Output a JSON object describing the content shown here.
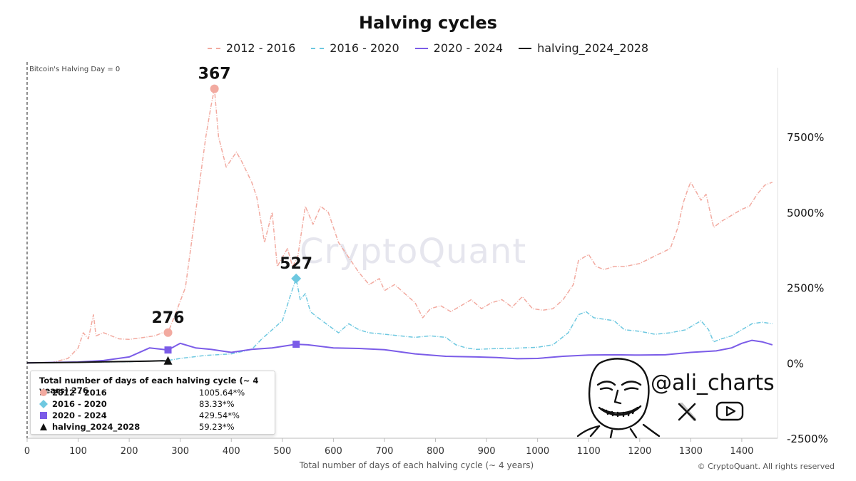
{
  "chart_data": {
    "type": "line",
    "title": "Halving cycles",
    "xlabel": "Total number of days of each halving cycle (~ 4 years)",
    "ylabel": "",
    "xlim": [
      0,
      1470
    ],
    "ylim": [
      -2500,
      9800
    ],
    "x_ticks": [
      0,
      100,
      200,
      300,
      400,
      500,
      600,
      700,
      800,
      900,
      1000,
      1100,
      1200,
      1300,
      1400
    ],
    "y_ticks": [
      -2500,
      0,
      2500,
      5000,
      7500
    ],
    "y_tick_labels": [
      "-2500%",
      "0%",
      "2500%",
      "5000%",
      "7500%"
    ],
    "legend_position": "top-center",
    "grid": false,
    "vertical_line_label": "Bitcoin's Halving Day = 0",
    "series": [
      {
        "name": "2012 - 2016",
        "color": "#f2aaa0",
        "dash": "dash-dot",
        "points": [
          [
            0,
            0
          ],
          [
            50,
            20
          ],
          [
            80,
            150
          ],
          [
            100,
            500
          ],
          [
            110,
            1000
          ],
          [
            120,
            800
          ],
          [
            130,
            1600
          ],
          [
            135,
            900
          ],
          [
            150,
            1000
          ],
          [
            180,
            800
          ],
          [
            200,
            780
          ],
          [
            230,
            850
          ],
          [
            250,
            900
          ],
          [
            265,
            1000
          ],
          [
            276,
            1005.64
          ],
          [
            290,
            1600
          ],
          [
            310,
            2500
          ],
          [
            330,
            5000
          ],
          [
            350,
            7500
          ],
          [
            360,
            8500
          ],
          [
            367,
            9100
          ],
          [
            375,
            7500
          ],
          [
            390,
            6500
          ],
          [
            410,
            7000
          ],
          [
            420,
            6700
          ],
          [
            440,
            6000
          ],
          [
            450,
            5500
          ],
          [
            465,
            4000
          ],
          [
            480,
            5000
          ],
          [
            490,
            3200
          ],
          [
            500,
            3500
          ],
          [
            510,
            3800
          ],
          [
            520,
            3200
          ],
          [
            530,
            3500
          ],
          [
            545,
            5200
          ],
          [
            560,
            4600
          ],
          [
            575,
            5200
          ],
          [
            590,
            5000
          ],
          [
            610,
            4000
          ],
          [
            630,
            3500
          ],
          [
            650,
            3000
          ],
          [
            670,
            2600
          ],
          [
            690,
            2800
          ],
          [
            700,
            2400
          ],
          [
            720,
            2600
          ],
          [
            740,
            2300
          ],
          [
            760,
            2000
          ],
          [
            775,
            1500
          ],
          [
            790,
            1800
          ],
          [
            810,
            1900
          ],
          [
            830,
            1700
          ],
          [
            850,
            1900
          ],
          [
            870,
            2100
          ],
          [
            890,
            1800
          ],
          [
            910,
            2000
          ],
          [
            930,
            2100
          ],
          [
            950,
            1850
          ],
          [
            970,
            2200
          ],
          [
            990,
            1800
          ],
          [
            1010,
            1750
          ],
          [
            1030,
            1800
          ],
          [
            1050,
            2100
          ],
          [
            1070,
            2600
          ],
          [
            1080,
            3400
          ],
          [
            1100,
            3600
          ],
          [
            1115,
            3200
          ],
          [
            1130,
            3100
          ],
          [
            1150,
            3200
          ],
          [
            1170,
            3200
          ],
          [
            1200,
            3300
          ],
          [
            1230,
            3550
          ],
          [
            1260,
            3800
          ],
          [
            1275,
            4500
          ],
          [
            1285,
            5300
          ],
          [
            1295,
            5800
          ],
          [
            1300,
            6000
          ],
          [
            1310,
            5700
          ],
          [
            1320,
            5400
          ],
          [
            1330,
            5600
          ],
          [
            1345,
            4500
          ],
          [
            1360,
            4700
          ],
          [
            1380,
            4900
          ],
          [
            1400,
            5100
          ],
          [
            1415,
            5200
          ],
          [
            1430,
            5600
          ],
          [
            1445,
            5900
          ],
          [
            1460,
            6000
          ]
        ]
      },
      {
        "name": "2016 - 2020",
        "color": "#6ec8e0",
        "dash": "dash-dot",
        "points": [
          [
            0,
            0
          ],
          [
            100,
            20
          ],
          [
            200,
            40
          ],
          [
            276,
            83.33
          ],
          [
            300,
            150
          ],
          [
            350,
            250
          ],
          [
            400,
            300
          ],
          [
            440,
            450
          ],
          [
            460,
            800
          ],
          [
            480,
            1100
          ],
          [
            500,
            1400
          ],
          [
            515,
            2200
          ],
          [
            527,
            2800
          ],
          [
            535,
            2100
          ],
          [
            545,
            2300
          ],
          [
            555,
            1700
          ],
          [
            570,
            1500
          ],
          [
            590,
            1250
          ],
          [
            610,
            1000
          ],
          [
            630,
            1300
          ],
          [
            650,
            1100
          ],
          [
            670,
            1000
          ],
          [
            700,
            950
          ],
          [
            730,
            900
          ],
          [
            760,
            850
          ],
          [
            790,
            900
          ],
          [
            820,
            850
          ],
          [
            840,
            600
          ],
          [
            860,
            500
          ],
          [
            880,
            450
          ],
          [
            910,
            470
          ],
          [
            940,
            480
          ],
          [
            970,
            500
          ],
          [
            1000,
            520
          ],
          [
            1030,
            600
          ],
          [
            1060,
            1000
          ],
          [
            1080,
            1600
          ],
          [
            1095,
            1700
          ],
          [
            1110,
            1500
          ],
          [
            1130,
            1450
          ],
          [
            1150,
            1400
          ],
          [
            1170,
            1100
          ],
          [
            1200,
            1050
          ],
          [
            1230,
            950
          ],
          [
            1260,
            1000
          ],
          [
            1290,
            1100
          ],
          [
            1320,
            1400
          ],
          [
            1335,
            1100
          ],
          [
            1345,
            700
          ],
          [
            1360,
            800
          ],
          [
            1380,
            900
          ],
          [
            1400,
            1100
          ],
          [
            1420,
            1300
          ],
          [
            1440,
            1350
          ],
          [
            1460,
            1300
          ]
        ]
      },
      {
        "name": "2020 - 2024",
        "color": "#7b5ce8",
        "dash": "solid",
        "points": [
          [
            0,
            0
          ],
          [
            100,
            30
          ],
          [
            150,
            80
          ],
          [
            200,
            200
          ],
          [
            240,
            500
          ],
          [
            276,
            429.54
          ],
          [
            300,
            650
          ],
          [
            330,
            500
          ],
          [
            360,
            450
          ],
          [
            400,
            350
          ],
          [
            440,
            450
          ],
          [
            480,
            500
          ],
          [
            527,
            620
          ],
          [
            550,
            600
          ],
          [
            600,
            500
          ],
          [
            650,
            480
          ],
          [
            700,
            440
          ],
          [
            760,
            300
          ],
          [
            820,
            220
          ],
          [
            880,
            200
          ],
          [
            920,
            180
          ],
          [
            960,
            140
          ],
          [
            1000,
            150
          ],
          [
            1050,
            220
          ],
          [
            1100,
            260
          ],
          [
            1150,
            270
          ],
          [
            1200,
            260
          ],
          [
            1250,
            270
          ],
          [
            1300,
            350
          ],
          [
            1350,
            400
          ],
          [
            1380,
            500
          ],
          [
            1400,
            650
          ],
          [
            1420,
            750
          ],
          [
            1440,
            700
          ],
          [
            1460,
            600
          ]
        ]
      },
      {
        "name": "halving_2024_2028",
        "color": "#111111",
        "dash": "solid",
        "points": [
          [
            0,
            0
          ],
          [
            50,
            10
          ],
          [
            100,
            20
          ],
          [
            150,
            35
          ],
          [
            200,
            50
          ],
          [
            240,
            60
          ],
          [
            265,
            70
          ],
          [
            276,
            59.23
          ]
        ]
      }
    ],
    "annotations": [
      {
        "label": "367",
        "x": 367,
        "y": 9100,
        "series": "2012 - 2016"
      },
      {
        "label": "527",
        "x": 527,
        "y": 2800,
        "series": "2016 - 2020"
      },
      {
        "label": "276",
        "x": 276,
        "y": 1005.64,
        "series": "2012 - 2016"
      }
    ],
    "markers": [
      {
        "series": "2012 - 2016",
        "x": 367,
        "y": 9100,
        "shape": "circle"
      },
      {
        "series": "2012 - 2016",
        "x": 276,
        "y": 1005.64,
        "shape": "circle"
      },
      {
        "series": "2016 - 2020",
        "x": 527,
        "y": 2800,
        "shape": "diamond"
      },
      {
        "series": "2020 - 2024",
        "x": 276,
        "y": 429.54,
        "shape": "square"
      },
      {
        "series": "2020 - 2024",
        "x": 527,
        "y": 620,
        "shape": "square"
      },
      {
        "series": "halving_2024_2028",
        "x": 276,
        "y": 59.23,
        "shape": "triangle"
      }
    ]
  },
  "tooltip": {
    "header": "Total number of days of each halving cycle (~ 4 years) 276",
    "rows": [
      {
        "label": "2012 - 2016",
        "value": "1005.64*%",
        "shape": "circle",
        "color": "#f2aaa0"
      },
      {
        "label": "2016 - 2020",
        "value": "83.33*%",
        "shape": "diamond",
        "color": "#6ec8e0"
      },
      {
        "label": "2020 - 2024",
        "value": "429.54*%",
        "shape": "square",
        "color": "#7b5ce8"
      },
      {
        "label": "halving_2024_2028",
        "value": "59.23*%",
        "shape": "triangle",
        "color": "#111111"
      }
    ]
  },
  "watermark": "CryptoQuant",
  "brand": {
    "handle": "@ali_charts",
    "icons": [
      "x-logo-icon",
      "youtube-icon"
    ]
  },
  "copyright": "© CryptoQuant. All rights reserved"
}
